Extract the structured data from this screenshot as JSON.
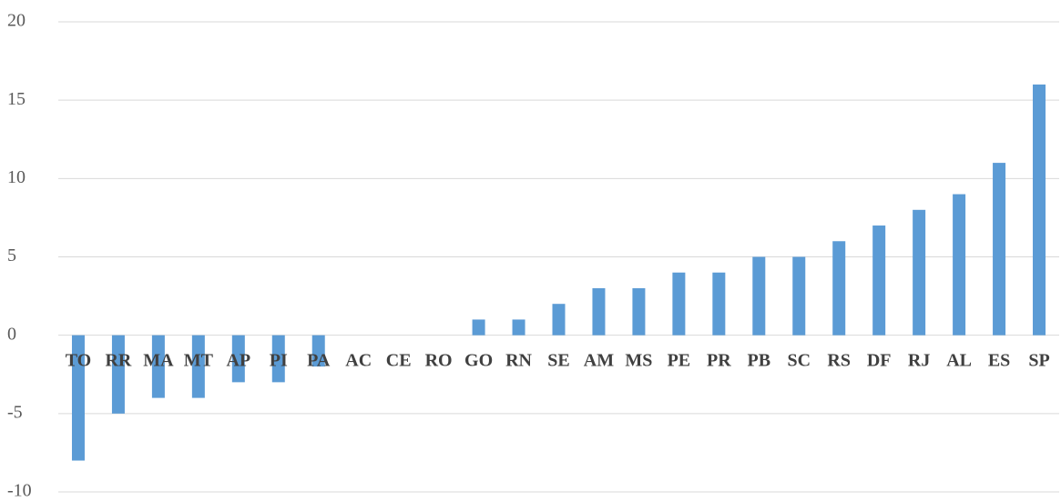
{
  "chart_data": {
    "type": "bar",
    "categories": [
      "TO",
      "RR",
      "MA",
      "MT",
      "AP",
      "PI",
      "PA",
      "AC",
      "CE",
      "RO",
      "GO",
      "RN",
      "SE",
      "AM",
      "MS",
      "PE",
      "PR",
      "PB",
      "SC",
      "RS",
      "DF",
      "RJ",
      "AL",
      "ES",
      "SP"
    ],
    "values": [
      -8,
      -5,
      -4,
      -4,
      -3,
      -3,
      -2,
      0,
      0,
      0,
      1,
      1,
      2,
      3,
      3,
      4,
      4,
      5,
      5,
      6,
      7,
      8,
      9,
      11,
      16
    ],
    "color": "#5b9bd5",
    "ylim": [
      -10,
      20
    ],
    "yticks": [
      -10,
      -5,
      0,
      5,
      10,
      15,
      20
    ],
    "grid": true
  }
}
